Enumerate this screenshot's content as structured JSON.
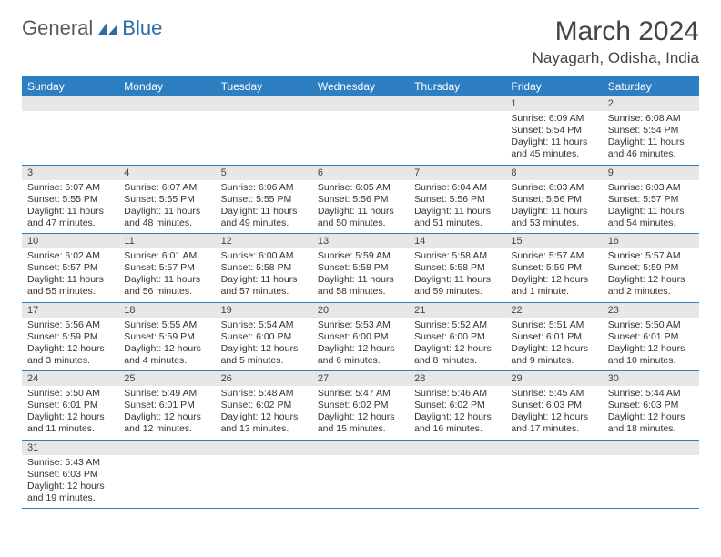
{
  "logo": {
    "word1": "General",
    "word2": "Blue"
  },
  "title": "March 2024",
  "location": "Nayagarh, Odisha, India",
  "colors": {
    "header_bg": "#2d7fc1",
    "header_text": "#ffffff",
    "daynum_bg": "#e7e7e7",
    "border": "#2d7fc1",
    "logo_gray": "#5a5a5a",
    "logo_blue": "#2d6ca8"
  },
  "weekdays": [
    "Sunday",
    "Monday",
    "Tuesday",
    "Wednesday",
    "Thursday",
    "Friday",
    "Saturday"
  ],
  "weeks": [
    [
      null,
      null,
      null,
      null,
      null,
      {
        "n": "1",
        "sr": "Sunrise: 6:09 AM",
        "ss": "Sunset: 5:54 PM",
        "dl1": "Daylight: 11 hours",
        "dl2": "and 45 minutes."
      },
      {
        "n": "2",
        "sr": "Sunrise: 6:08 AM",
        "ss": "Sunset: 5:54 PM",
        "dl1": "Daylight: 11 hours",
        "dl2": "and 46 minutes."
      }
    ],
    [
      {
        "n": "3",
        "sr": "Sunrise: 6:07 AM",
        "ss": "Sunset: 5:55 PM",
        "dl1": "Daylight: 11 hours",
        "dl2": "and 47 minutes."
      },
      {
        "n": "4",
        "sr": "Sunrise: 6:07 AM",
        "ss": "Sunset: 5:55 PM",
        "dl1": "Daylight: 11 hours",
        "dl2": "and 48 minutes."
      },
      {
        "n": "5",
        "sr": "Sunrise: 6:06 AM",
        "ss": "Sunset: 5:55 PM",
        "dl1": "Daylight: 11 hours",
        "dl2": "and 49 minutes."
      },
      {
        "n": "6",
        "sr": "Sunrise: 6:05 AM",
        "ss": "Sunset: 5:56 PM",
        "dl1": "Daylight: 11 hours",
        "dl2": "and 50 minutes."
      },
      {
        "n": "7",
        "sr": "Sunrise: 6:04 AM",
        "ss": "Sunset: 5:56 PM",
        "dl1": "Daylight: 11 hours",
        "dl2": "and 51 minutes."
      },
      {
        "n": "8",
        "sr": "Sunrise: 6:03 AM",
        "ss": "Sunset: 5:56 PM",
        "dl1": "Daylight: 11 hours",
        "dl2": "and 53 minutes."
      },
      {
        "n": "9",
        "sr": "Sunrise: 6:03 AM",
        "ss": "Sunset: 5:57 PM",
        "dl1": "Daylight: 11 hours",
        "dl2": "and 54 minutes."
      }
    ],
    [
      {
        "n": "10",
        "sr": "Sunrise: 6:02 AM",
        "ss": "Sunset: 5:57 PM",
        "dl1": "Daylight: 11 hours",
        "dl2": "and 55 minutes."
      },
      {
        "n": "11",
        "sr": "Sunrise: 6:01 AM",
        "ss": "Sunset: 5:57 PM",
        "dl1": "Daylight: 11 hours",
        "dl2": "and 56 minutes."
      },
      {
        "n": "12",
        "sr": "Sunrise: 6:00 AM",
        "ss": "Sunset: 5:58 PM",
        "dl1": "Daylight: 11 hours",
        "dl2": "and 57 minutes."
      },
      {
        "n": "13",
        "sr": "Sunrise: 5:59 AM",
        "ss": "Sunset: 5:58 PM",
        "dl1": "Daylight: 11 hours",
        "dl2": "and 58 minutes."
      },
      {
        "n": "14",
        "sr": "Sunrise: 5:58 AM",
        "ss": "Sunset: 5:58 PM",
        "dl1": "Daylight: 11 hours",
        "dl2": "and 59 minutes."
      },
      {
        "n": "15",
        "sr": "Sunrise: 5:57 AM",
        "ss": "Sunset: 5:59 PM",
        "dl1": "Daylight: 12 hours",
        "dl2": "and 1 minute."
      },
      {
        "n": "16",
        "sr": "Sunrise: 5:57 AM",
        "ss": "Sunset: 5:59 PM",
        "dl1": "Daylight: 12 hours",
        "dl2": "and 2 minutes."
      }
    ],
    [
      {
        "n": "17",
        "sr": "Sunrise: 5:56 AM",
        "ss": "Sunset: 5:59 PM",
        "dl1": "Daylight: 12 hours",
        "dl2": "and 3 minutes."
      },
      {
        "n": "18",
        "sr": "Sunrise: 5:55 AM",
        "ss": "Sunset: 5:59 PM",
        "dl1": "Daylight: 12 hours",
        "dl2": "and 4 minutes."
      },
      {
        "n": "19",
        "sr": "Sunrise: 5:54 AM",
        "ss": "Sunset: 6:00 PM",
        "dl1": "Daylight: 12 hours",
        "dl2": "and 5 minutes."
      },
      {
        "n": "20",
        "sr": "Sunrise: 5:53 AM",
        "ss": "Sunset: 6:00 PM",
        "dl1": "Daylight: 12 hours",
        "dl2": "and 6 minutes."
      },
      {
        "n": "21",
        "sr": "Sunrise: 5:52 AM",
        "ss": "Sunset: 6:00 PM",
        "dl1": "Daylight: 12 hours",
        "dl2": "and 8 minutes."
      },
      {
        "n": "22",
        "sr": "Sunrise: 5:51 AM",
        "ss": "Sunset: 6:01 PM",
        "dl1": "Daylight: 12 hours",
        "dl2": "and 9 minutes."
      },
      {
        "n": "23",
        "sr": "Sunrise: 5:50 AM",
        "ss": "Sunset: 6:01 PM",
        "dl1": "Daylight: 12 hours",
        "dl2": "and 10 minutes."
      }
    ],
    [
      {
        "n": "24",
        "sr": "Sunrise: 5:50 AM",
        "ss": "Sunset: 6:01 PM",
        "dl1": "Daylight: 12 hours",
        "dl2": "and 11 minutes."
      },
      {
        "n": "25",
        "sr": "Sunrise: 5:49 AM",
        "ss": "Sunset: 6:01 PM",
        "dl1": "Daylight: 12 hours",
        "dl2": "and 12 minutes."
      },
      {
        "n": "26",
        "sr": "Sunrise: 5:48 AM",
        "ss": "Sunset: 6:02 PM",
        "dl1": "Daylight: 12 hours",
        "dl2": "and 13 minutes."
      },
      {
        "n": "27",
        "sr": "Sunrise: 5:47 AM",
        "ss": "Sunset: 6:02 PM",
        "dl1": "Daylight: 12 hours",
        "dl2": "and 15 minutes."
      },
      {
        "n": "28",
        "sr": "Sunrise: 5:46 AM",
        "ss": "Sunset: 6:02 PM",
        "dl1": "Daylight: 12 hours",
        "dl2": "and 16 minutes."
      },
      {
        "n": "29",
        "sr": "Sunrise: 5:45 AM",
        "ss": "Sunset: 6:03 PM",
        "dl1": "Daylight: 12 hours",
        "dl2": "and 17 minutes."
      },
      {
        "n": "30",
        "sr": "Sunrise: 5:44 AM",
        "ss": "Sunset: 6:03 PM",
        "dl1": "Daylight: 12 hours",
        "dl2": "and 18 minutes."
      }
    ],
    [
      {
        "n": "31",
        "sr": "Sunrise: 5:43 AM",
        "ss": "Sunset: 6:03 PM",
        "dl1": "Daylight: 12 hours",
        "dl2": "and 19 minutes."
      },
      null,
      null,
      null,
      null,
      null,
      null
    ]
  ]
}
